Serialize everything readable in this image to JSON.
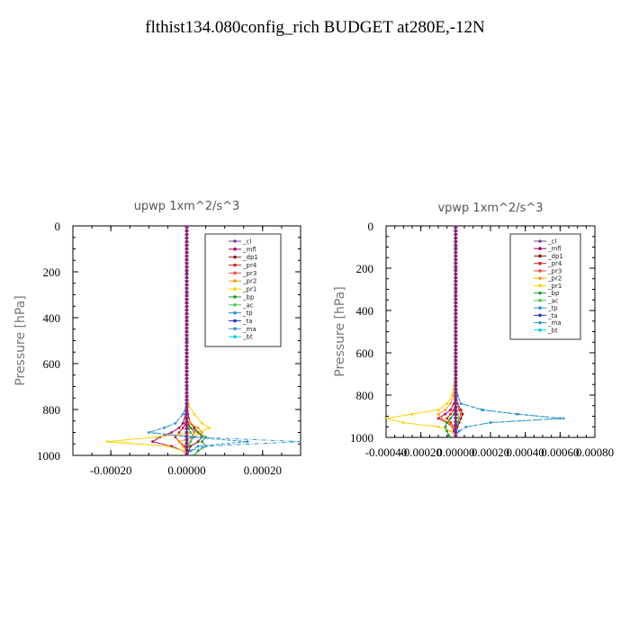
{
  "title": "flthist134.080config_rich  BUDGET at280E,-12N",
  "chart_data": [
    {
      "type": "line",
      "title": "upwp   1xm^2/s^3",
      "ylabel": "Pressure [hPa]",
      "xlim": [
        -0.0003,
        0.0003
      ],
      "ylim": [
        1000,
        0
      ],
      "xticks": [
        "-0.00020",
        "0.00000",
        "0.00020"
      ],
      "xtick_values": [
        -0.0002,
        0.0,
        0.0002
      ],
      "yticks": [
        "0",
        "200",
        "400",
        "600",
        "800",
        "1000"
      ],
      "legend_position": "top-right",
      "pressure": [
        0,
        100,
        200,
        300,
        400,
        500,
        600,
        700,
        780,
        820,
        860,
        880,
        900,
        920,
        940,
        960,
        980,
        1000
      ],
      "series": [
        {
          "name": "_cl",
          "color": "#7a3f8f",
          "values": [
            0,
            0,
            0,
            0,
            0,
            0,
            0,
            0,
            0,
            0,
            0,
            0,
            0,
            0,
            0,
            0,
            0,
            0
          ]
        },
        {
          "name": "_mfl",
          "color": "#b0006a",
          "values": [
            0,
            0,
            0,
            0,
            0,
            0,
            0,
            0,
            0,
            -3e-06,
            -1e-05,
            -2e-05,
            -4e-05,
            -7e-05,
            -9e-05,
            -4e-05,
            -1e-05,
            0
          ]
        },
        {
          "name": "_dp1",
          "color": "#8b1a1a",
          "values": [
            0,
            0,
            0,
            0,
            0,
            0,
            0,
            0,
            0,
            3e-06,
            1e-05,
            2e-05,
            3e-05,
            4e-05,
            3e-05,
            1e-05,
            5e-06,
            0
          ]
        },
        {
          "name": "_pr4",
          "color": "#dd2222",
          "values": [
            0,
            0,
            0,
            0,
            0,
            0,
            0,
            0,
            0,
            0,
            -3e-06,
            -1e-05,
            -2e-05,
            -3e-05,
            -2e-05,
            -5e-06,
            0,
            0
          ]
        },
        {
          "name": "_pr3",
          "color": "#ff4444",
          "values": [
            0,
            0,
            0,
            0,
            0,
            0,
            0,
            0,
            0,
            0,
            5e-06,
            1e-05,
            2e-05,
            1.5e-05,
            1e-05,
            5e-06,
            0,
            0
          ]
        },
        {
          "name": "_pr2",
          "color": "#ff9900",
          "values": [
            0,
            0,
            0,
            0,
            0,
            0,
            0,
            0,
            0,
            0,
            1e-05,
            3e-05,
            4e-05,
            2e-05,
            -2e-05,
            -1e-05,
            0,
            0
          ]
        },
        {
          "name": "_pr1",
          "color": "#ffd000",
          "values": [
            0,
            0,
            0,
            0,
            0,
            0,
            0,
            0,
            5e-06,
            2e-05,
            4e-05,
            6e-05,
            3e-05,
            -8e-05,
            -0.00021,
            -5e-05,
            -1e-05,
            0
          ]
        },
        {
          "name": "_bp",
          "color": "#1f9a1f",
          "values": [
            0,
            0,
            0,
            0,
            0,
            0,
            0,
            0,
            0,
            0,
            0,
            1e-05,
            3e-05,
            5e-05,
            4e-05,
            5e-05,
            3e-05,
            2e-05
          ]
        },
        {
          "name": "_ac",
          "color": "#44cc44",
          "values": [
            0,
            0,
            0,
            0,
            0,
            0,
            0,
            0,
            0,
            0,
            0,
            5e-06,
            1e-05,
            2e-05,
            1e-05,
            5e-06,
            0,
            0
          ]
        },
        {
          "name": "_tp",
          "color": "#2a8fd0",
          "values": [
            0,
            0,
            0,
            0,
            0,
            0,
            0,
            0,
            0,
            -1e-05,
            -3e-05,
            -6e-05,
            -0.0001,
            1e-05,
            0.00016,
            3e-05,
            1e-05,
            0
          ]
        },
        {
          "name": "_ta",
          "color": "#2233cc",
          "values": [
            0,
            0,
            0,
            0,
            0,
            0,
            0,
            0,
            0,
            0,
            0,
            0,
            0,
            0,
            0,
            0,
            0,
            0
          ]
        },
        {
          "name": "_ma",
          "color": "#3399cc",
          "values": [
            0,
            0,
            0,
            0,
            0,
            0,
            0,
            0,
            0,
            -1e-05,
            -3e-05,
            -6e-05,
            -0.0001,
            2e-05,
            0.0003,
            5e-05,
            1e-05,
            0
          ]
        },
        {
          "name": "_bt",
          "color": "#00ccee",
          "values": [
            0,
            0,
            0,
            0,
            0,
            0,
            0,
            0,
            0,
            0,
            0,
            0,
            0,
            0,
            0,
            0,
            0,
            0
          ]
        }
      ]
    },
    {
      "type": "line",
      "title": "vpwp   1xm^2/s^3",
      "ylabel": "Pressure [hPa]",
      "xlim": [
        -0.0004,
        0.0008
      ],
      "ylim": [
        1000,
        0
      ],
      "xticks": [
        "-0.00040",
        "-0.00020",
        "0.00000",
        "0.00020",
        "0.00040",
        "0.00060",
        "0.00080"
      ],
      "xtick_values": [
        -0.0004,
        -0.0002,
        0.0,
        0.0002,
        0.0004,
        0.0006,
        0.0008
      ],
      "yticks": [
        "0",
        "200",
        "400",
        "600",
        "800",
        "1000"
      ],
      "legend_position": "top-right",
      "pressure": [
        0,
        100,
        200,
        300,
        400,
        500,
        600,
        700,
        800,
        840,
        870,
        890,
        910,
        930,
        950,
        970,
        990,
        1000
      ],
      "series": [
        {
          "name": "_cl",
          "color": "#7a3f8f",
          "values": [
            0,
            0,
            0,
            0,
            0,
            0,
            0,
            0,
            0,
            0,
            0,
            0,
            0,
            0,
            0,
            0,
            0,
            0
          ]
        },
        {
          "name": "_mfl",
          "color": "#b0006a",
          "values": [
            0,
            0,
            0,
            0,
            0,
            0,
            0,
            0,
            0,
            -1e-05,
            -3e-05,
            -6e-05,
            -0.0001,
            -5e-05,
            -2e-05,
            -1e-05,
            0,
            0
          ]
        },
        {
          "name": "_dp1",
          "color": "#8b1a1a",
          "values": [
            0,
            0,
            0,
            0,
            0,
            0,
            0,
            0,
            0,
            1e-05,
            3e-05,
            4e-05,
            3e-05,
            2e-05,
            1e-05,
            0,
            0,
            0
          ]
        },
        {
          "name": "_pr4",
          "color": "#dd2222",
          "values": [
            0,
            0,
            0,
            0,
            0,
            0,
            0,
            0,
            0,
            0,
            -1e-05,
            -3e-05,
            -5e-05,
            -3e-05,
            -1e-05,
            0,
            0,
            0
          ]
        },
        {
          "name": "_pr3",
          "color": "#ff4444",
          "values": [
            0,
            0,
            0,
            0,
            0,
            0,
            0,
            0,
            0,
            1e-05,
            2e-05,
            3e-05,
            2e-05,
            1e-05,
            0,
            0,
            0,
            0
          ]
        },
        {
          "name": "_pr2",
          "color": "#ff9900",
          "values": [
            0,
            0,
            0,
            0,
            0,
            0,
            0,
            0,
            -1e-05,
            -3e-05,
            -6e-05,
            -0.0001,
            -8e-05,
            -4e-05,
            -2e-05,
            0,
            0,
            0
          ]
        },
        {
          "name": "_pr1",
          "color": "#ffd000",
          "values": [
            0,
            0,
            0,
            0,
            0,
            0,
            0,
            0,
            -2e-05,
            -5e-05,
            -0.0001,
            -0.00025,
            -0.0004,
            -0.0003,
            -0.0001,
            -3e-05,
            0,
            0
          ]
        },
        {
          "name": "_bp",
          "color": "#1f9a1f",
          "values": [
            0,
            0,
            0,
            0,
            0,
            0,
            0,
            0,
            0,
            0,
            0,
            -1e-05,
            -3e-05,
            -5e-05,
            -6e-05,
            -5e-05,
            -4e-05,
            -3e-05
          ]
        },
        {
          "name": "_ac",
          "color": "#44cc44",
          "values": [
            0,
            0,
            0,
            0,
            0,
            0,
            0,
            0,
            0,
            0,
            0,
            1e-05,
            2e-05,
            1e-05,
            0,
            0,
            0,
            0
          ]
        },
        {
          "name": "_tp",
          "color": "#2a8fd0",
          "values": [
            0,
            0,
            0,
            0,
            0,
            0,
            0,
            0,
            1e-05,
            3e-05,
            0.00015,
            0.00035,
            0.0006,
            0.0002,
            6e-05,
            2e-05,
            0,
            0
          ]
        },
        {
          "name": "_ta",
          "color": "#2233cc",
          "values": [
            0,
            0,
            0,
            0,
            0,
            0,
            0,
            0,
            0,
            0,
            0,
            0,
            0,
            0,
            0,
            0,
            0,
            0
          ]
        },
        {
          "name": "_ma",
          "color": "#3399cc",
          "values": [
            0,
            0,
            0,
            0,
            0,
            0,
            0,
            0,
            1e-05,
            3e-05,
            0.00016,
            0.00036,
            0.00062,
            0.0002,
            6e-05,
            2e-05,
            0,
            0
          ]
        },
        {
          "name": "_bt",
          "color": "#00ccee",
          "values": [
            0,
            0,
            0,
            0,
            0,
            0,
            0,
            0,
            0,
            0,
            0,
            0,
            0,
            0,
            0,
            0,
            0,
            0
          ]
        }
      ]
    }
  ]
}
